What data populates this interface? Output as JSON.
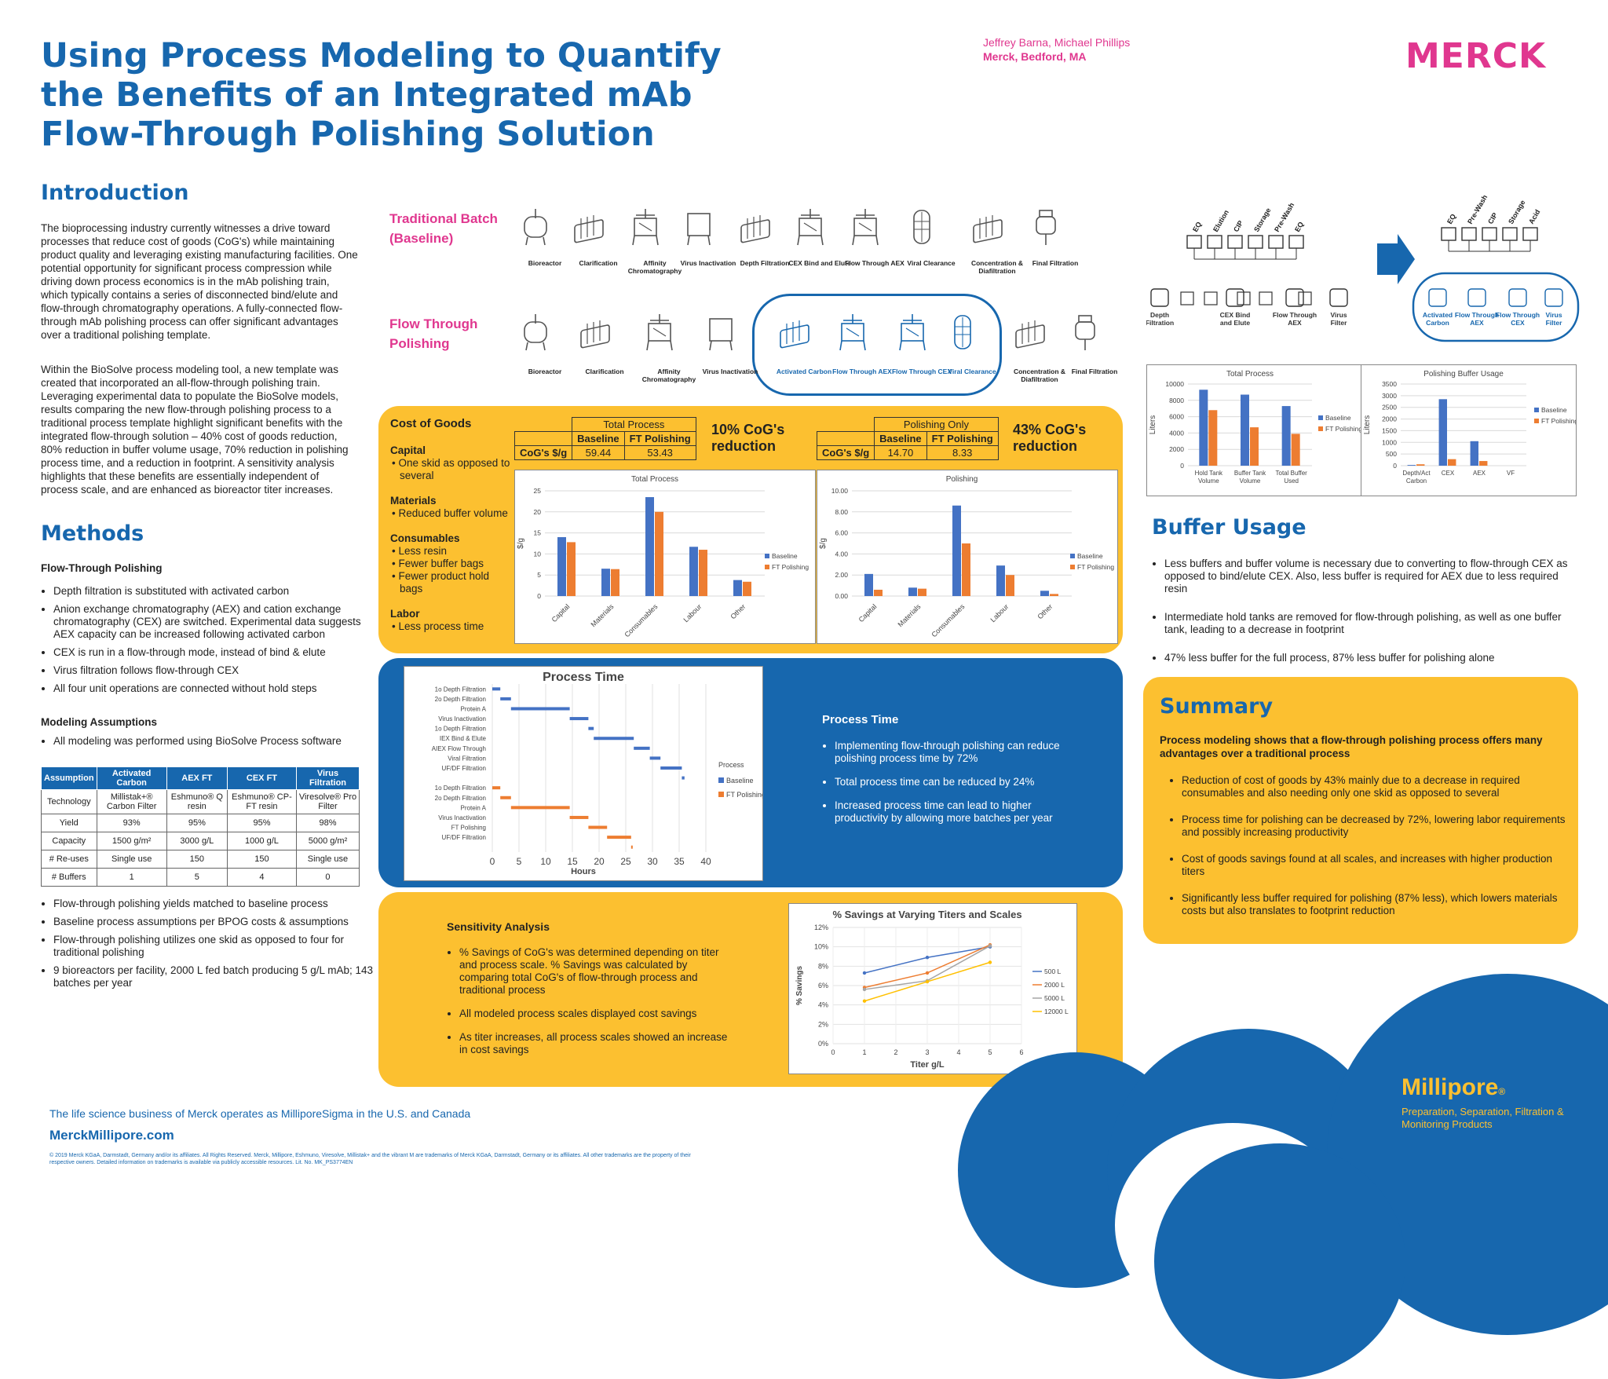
{
  "header": {
    "title": "Using Process Modeling to Quantify the Benefits of an Integrated mAb Flow-Through Polishing Solution",
    "authors": "Jeffrey Barna, Michael Phillips",
    "affiliation": "Merck, Bedford, MA",
    "logo": "MERCK"
  },
  "intro": {
    "heading": "Introduction",
    "p1": "The bioprocessing industry currently witnesses a drive toward processes that reduce cost of goods (CoG's) while maintaining product quality and leveraging existing manufacturing facilities. One potential opportunity for significant process compression while driving down process economics is in the mAb polishing train, which typically contains a series of disconnected bind/elute and flow-through chromatography operations. A fully-connected flow-through mAb polishing process can offer significant advantages over a traditional polishing template.",
    "p2": "Within the BioSolve process modeling tool, a new template was created that incorporated an all-flow-through polishing train. Leveraging experimental data to populate the BioSolve models, results comparing the new flow-through polishing process to a traditional process template highlight significant benefits with the integrated flow-through solution – 40% cost of goods reduction, 80% reduction in buffer volume usage, 70% reduction in polishing process time, and a reduction in footprint. A sensitivity analysis highlights that these benefits are essentially independent of process scale, and are enhanced as bioreactor titer increases."
  },
  "methods": {
    "heading": "Methods",
    "sub1": "Flow-Through Polishing",
    "bullets1": [
      "Depth filtration is substituted with activated carbon",
      "Anion exchange chromatography (AEX) and cation exchange chromatography (CEX) are switched. Experimental data suggests AEX capacity can be increased following activated carbon",
      "CEX is run in a flow-through mode, instead of bind & elute",
      "Virus filtration follows flow-through CEX",
      "All four unit operations are connected without hold steps"
    ],
    "sub2": "Modeling Assumptions",
    "bullets2": [
      "All modeling was performed using BioSolve Process software"
    ],
    "table": {
      "headers": [
        "Assumption",
        "Activated Carbon",
        "AEX FT",
        "CEX FT",
        "Virus Filtration"
      ],
      "rows": [
        [
          "Technology",
          "Millistak+® Carbon Filter",
          "Eshmuno® Q resin",
          "Eshmuno® CP-FT resin",
          "Viresolve® Pro Filter"
        ],
        [
          "Yield",
          "93%",
          "95%",
          "95%",
          "98%"
        ],
        [
          "Capacity",
          "1500 g/m²",
          "3000 g/L",
          "1000 g/L",
          "5000 g/m²"
        ],
        [
          "# Re-uses",
          "Single use",
          "150",
          "150",
          "Single use"
        ],
        [
          "# Buffers",
          "1",
          "5",
          "4",
          "0"
        ]
      ]
    },
    "bullets3": [
      "Flow-through polishing yields matched to baseline process",
      "Baseline process assumptions per BPOG costs & assumptions",
      "Flow-through polishing utilizes one skid as opposed to four for traditional polishing",
      "9 bioreactors per facility, 2000 L fed batch producing 5 g/L mAb; 143 batches per year"
    ]
  },
  "flow": {
    "trad_label": "Traditional Batch (Baseline)",
    "ft_label": "Flow Through Polishing",
    "trad_steps": [
      "Bioreactor",
      "Clarification",
      "Affinity Chromatography",
      "Virus Inactivation",
      "Depth Filtration",
      "CEX Bind and Elute",
      "Flow Through AEX",
      "Viral Clearance",
      "Concentration & Diafiltration",
      "Final Filtration"
    ],
    "ft_steps": [
      "Bioreactor",
      "Clarification",
      "Affinity Chromatography",
      "Virus Inactivation",
      "Activated Carbon",
      "Flow Through AEX",
      "Flow Through CEX",
      "Viral Clearance",
      "Concentration & Diafiltration",
      "Final Filtration"
    ]
  },
  "buffer_diagram": {
    "left_tanks": [
      "EQ",
      "Elution",
      "CIP",
      "Storage",
      "Pre-Wash",
      "EQ"
    ],
    "left_steps": [
      "Depth Filtration",
      "CEX Bind and Elute",
      "Flow Through AEX",
      "Virus Filter"
    ],
    "right_tanks": [
      "EQ",
      "Pre-Wash",
      "CIP",
      "Storage",
      "Acid"
    ],
    "right_steps": [
      "Activated Carbon",
      "Flow Through AEX",
      "Flow Through CEX",
      "Virus Filter"
    ]
  },
  "cog": {
    "heading": "Cost of Goods",
    "items": [
      {
        "title": "Capital",
        "bullets": [
          "One skid as opposed to several"
        ]
      },
      {
        "title": "Materials",
        "bullets": [
          "Reduced buffer volume"
        ]
      },
      {
        "title": "Consumables",
        "bullets": [
          "Less resin",
          "Fewer buffer bags",
          "Fewer product hold bags"
        ]
      },
      {
        "title": "Labor",
        "bullets": [
          "Less process time"
        ]
      }
    ],
    "t1": {
      "group": "Total Process",
      "c1": "Baseline",
      "c2": "FT Polishing",
      "row": "CoG's $/g",
      "v1": "59.44",
      "v2": "53.43"
    },
    "t2": {
      "group": "Polishing Only",
      "c1": "Baseline",
      "c2": "FT Polishing",
      "row": "CoG's $/g",
      "v1": "14.70",
      "v2": "8.33"
    },
    "r1": "10% CoG's reduction",
    "r2": "43% CoG's reduction"
  },
  "process_time": {
    "heading": "Process Time",
    "bullets": [
      "Implementing flow-through polishing can reduce polishing process time by 72%",
      "Total process time can be reduced by 24%",
      "Increased process time can lead to higher productivity by allowing more batches per year"
    ]
  },
  "sensitivity": {
    "heading": "Sensitivity Analysis",
    "bullets": [
      "% Savings of CoG's was determined depending on titer and process scale. % Savings was calculated by comparing total CoG's of flow-through process and traditional process",
      "All modeled process scales displayed cost savings",
      "As titer increases, all process scales showed an increase in cost savings"
    ]
  },
  "buffer_usage": {
    "heading": "Buffer Usage",
    "bullets": [
      "Less buffers and buffer volume is necessary due to converting to flow-through CEX as opposed to bind/elute CEX. Also, less buffer is required for AEX due to less required resin",
      "Intermediate hold tanks are removed for flow-through polishing, as well as one buffer tank, leading to a decrease in footprint",
      "47% less buffer for the full process, 87% less buffer for polishing alone"
    ]
  },
  "summary": {
    "heading": "Summary",
    "lead": "Process modeling shows that a flow-through polishing process offers many advantages over a traditional process",
    "bullets": [
      "Reduction of cost of goods by 43% mainly due to a decrease in required consumables and also needing only one skid as opposed to several",
      "Process time for polishing can be decreased by 72%, lowering labor requirements and possibly increasing productivity",
      "Cost of goods savings found at all scales, and increases with higher production titers",
      "Significantly less buffer required for polishing (87% less), which lowers materials costs but also translates to footprint reduction"
    ]
  },
  "footer": {
    "line1": "The life science business of Merck operates as MilliporeSigma in the U.S. and Canada",
    "site": "MerckMillipore.com",
    "legal": "© 2019 Merck KGaA, Darmstadt, Germany and/or its affiliates. All Rights Reserved. Merck, Millipore, Eshmuno, Viresolve, Millistak+ and the vibrant M are trademarks of Merck KGaA, Darmstadt, Germany or its affiliates. All other trademarks are the property of their respective owners. Detailed information on trademarks is available via publicly accessible resources. Lit. No. MK_PS3774EN",
    "brand": "Millipore",
    "brand_mark": "®",
    "tagline": "Preparation, Separation, Filtration & Monitoring Products"
  },
  "colors": {
    "primary": "#1767ae",
    "accent": "#fcc030",
    "pink": "#e0378f",
    "baseline": "#4472c4",
    "ft": "#ed7d31"
  },
  "chart_data": [
    {
      "type": "bar",
      "title": "Total Process",
      "ylabel": "$/g",
      "categories": [
        "Capital",
        "Materials",
        "Consumables",
        "Labour",
        "Other"
      ],
      "ylim": [
        0,
        25
      ],
      "yticks": [
        0,
        5,
        10,
        15,
        20,
        25
      ],
      "series": [
        {
          "name": "Baseline",
          "values": [
            14,
            6.5,
            23.5,
            11.7,
            3.8
          ]
        },
        {
          "name": "FT Polishing",
          "values": [
            12.8,
            6.4,
            20,
            11,
            3.4
          ]
        }
      ]
    },
    {
      "type": "bar",
      "title": "Polishing",
      "ylabel": "$/g",
      "categories": [
        "Capital",
        "Materials",
        "Consumables",
        "Labour",
        "Other"
      ],
      "ylim": [
        0,
        10
      ],
      "yticks": [
        "0.00",
        "2.00",
        "4.00",
        "6.00",
        "8.00",
        "10.00"
      ],
      "series": [
        {
          "name": "Baseline",
          "values": [
            2.1,
            0.8,
            8.6,
            2.9,
            0.5
          ]
        },
        {
          "name": "FT Polishing",
          "values": [
            0.6,
            0.7,
            5,
            2,
            0.2
          ]
        }
      ]
    },
    {
      "type": "bar",
      "title": "Total Process",
      "ylabel": "Liters",
      "categories": [
        "Hold Tank Volume",
        "Buffer Tank Volume",
        "Total Buffer Used"
      ],
      "ylim": [
        0,
        10000
      ],
      "yticks": [
        0,
        2000,
        4000,
        6000,
        8000,
        10000
      ],
      "series": [
        {
          "name": "Baseline",
          "values": [
            9300,
            8700,
            7300
          ]
        },
        {
          "name": "FT Polishing",
          "values": [
            6800,
            4700,
            3900
          ]
        }
      ]
    },
    {
      "type": "bar",
      "title": "Polishing Buffer Usage",
      "ylabel": "Liters",
      "categories": [
        "Depth/Act Carbon",
        "CEX",
        "AEX",
        "VF"
      ],
      "ylim": [
        0,
        3500
      ],
      "yticks": [
        0,
        500,
        1000,
        1500,
        2000,
        2500,
        3000,
        3500
      ],
      "series": [
        {
          "name": "Baseline",
          "values": [
            30,
            2850,
            1050,
            0
          ]
        },
        {
          "name": "FT Polishing",
          "values": [
            60,
            280,
            200,
            0
          ]
        }
      ]
    },
    {
      "type": "gantt",
      "title": "Process Time",
      "xlabel": "Hours",
      "xlim": [
        0,
        40
      ],
      "xticks": [
        0,
        5,
        10,
        15,
        20,
        25,
        30,
        35,
        40
      ],
      "legend_title": "Process",
      "series": [
        {
          "name": "Baseline"
        },
        {
          "name": "FT Polishing"
        }
      ],
      "tasks": [
        {
          "label": "1o Depth Filtration",
          "start": 0,
          "end": 1.5,
          "series": "Baseline"
        },
        {
          "label": "2o Depth Filtration",
          "start": 1.5,
          "end": 3.5,
          "series": "Baseline"
        },
        {
          "label": "Protein A",
          "start": 3.5,
          "end": 14.5,
          "series": "Baseline"
        },
        {
          "label": "Virus Inactivation",
          "start": 14.5,
          "end": 18,
          "series": "Baseline"
        },
        {
          "label": "1o Depth Filtration",
          "start": 18,
          "end": 19,
          "series": "Baseline"
        },
        {
          "label": "IEX Bind & Elute",
          "start": 19,
          "end": 26.5,
          "series": "Baseline"
        },
        {
          "label": "AIEX Flow Through",
          "start": 26.5,
          "end": 29.5,
          "series": "Baseline"
        },
        {
          "label": "Viral Filtration",
          "start": 29.5,
          "end": 31.5,
          "series": "Baseline"
        },
        {
          "label": "UF/DF Filtration",
          "start": 31.5,
          "end": 35.5,
          "series": "Baseline"
        },
        {
          "label": "",
          "start": 35.5,
          "end": 36,
          "series": "Baseline"
        },
        {
          "label": "1o Depth Filtration",
          "start": 0,
          "end": 1.5,
          "series": "FT Polishing"
        },
        {
          "label": "2o Depth Filtration",
          "start": 1.5,
          "end": 3.5,
          "series": "FT Polishing"
        },
        {
          "label": "Protein A",
          "start": 3.5,
          "end": 14.5,
          "series": "FT Polishing"
        },
        {
          "label": "Virus Inactivation",
          "start": 14.5,
          "end": 18,
          "series": "FT Polishing"
        },
        {
          "label": "FT Polishing",
          "start": 18,
          "end": 21.5,
          "series": "FT Polishing"
        },
        {
          "label": "UF/DF Filtration",
          "start": 21.5,
          "end": 26,
          "series": "FT Polishing"
        },
        {
          "label": "",
          "start": 26,
          "end": 26.3,
          "series": "FT Polishing"
        }
      ]
    },
    {
      "type": "line",
      "title": "% Savings at Varying Titers and Scales",
      "xlabel": "Titer g/L",
      "ylabel": "% Savings",
      "xlim": [
        0,
        6
      ],
      "ylim": [
        0,
        12
      ],
      "yticks": [
        "0%",
        "2%",
        "4%",
        "6%",
        "8%",
        "10%",
        "12%"
      ],
      "x": [
        1,
        3,
        5
      ],
      "series": [
        {
          "name": "500 L",
          "values": [
            7.3,
            8.9,
            10
          ]
        },
        {
          "name": "2000 L",
          "values": [
            5.8,
            7.3,
            10.2
          ]
        },
        {
          "name": "5000 L",
          "values": [
            5.6,
            6.5,
            10.1
          ]
        },
        {
          "name": "12000 L",
          "values": [
            4.4,
            6.4,
            8.4
          ]
        }
      ]
    }
  ]
}
